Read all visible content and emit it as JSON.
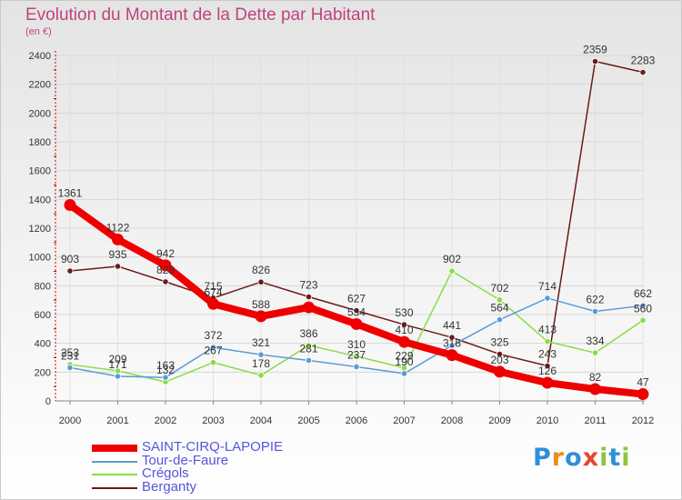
{
  "title": "Evolution du Montant de la Dette par Habitant",
  "subtitle": "(en €)",
  "logo": {
    "text": "Proxiti",
    "colors": [
      "#2f8fd8",
      "#f08a1c",
      "#2f8fd8",
      "#e8452f",
      "#8cc63f",
      "#2f8fd8",
      "#8cc63f"
    ]
  },
  "chart_data": {
    "type": "line",
    "title": "Evolution du Montant de la Dette par Habitant",
    "subtitle": "(en €)",
    "xlabel": "",
    "ylabel": "",
    "ylim": [
      0,
      2400
    ],
    "yticks": [
      0,
      200,
      400,
      600,
      800,
      1000,
      1200,
      1400,
      1600,
      1800,
      2000,
      2200,
      2400
    ],
    "grid": true,
    "legend_position": "bottom-left",
    "categories": [
      "2000",
      "2001",
      "2002",
      "2003",
      "2004",
      "2005",
      "2006",
      "2007",
      "2008",
      "2009",
      "2010",
      "2011",
      "2012"
    ],
    "series": [
      {
        "name": "SAINT-CIRQ-LAPOPIE",
        "color": "#ee0000",
        "values": [
          1361,
          1122,
          942,
          674,
          588,
          650,
          534,
          410,
          318,
          203,
          126,
          82,
          47
        ],
        "labels": [
          "1361",
          "1122",
          "942",
          "674",
          "588",
          "",
          "534",
          "410",
          "318",
          "203",
          "126",
          "82",
          "47"
        ]
      },
      {
        "name": "Tour-de-Faure",
        "color": "#5a9bd4",
        "values": [
          231,
          171,
          163,
          372,
          321,
          281,
          237,
          190,
          385,
          564,
          714,
          622,
          662
        ],
        "labels": [
          "231",
          "171",
          "163",
          "372",
          "321",
          "281",
          "237",
          "190",
          "",
          "564",
          "714",
          "622",
          "662"
        ]
      },
      {
        "name": "Crégols",
        "color": "#88dd44",
        "values": [
          253,
          209,
          132,
          267,
          178,
          386,
          310,
          229,
          902,
          702,
          413,
          334,
          560
        ],
        "labels": [
          "253",
          "209",
          "132",
          "267",
          "178",
          "386",
          "310",
          "229",
          "902",
          "702",
          "413",
          "334",
          "560"
        ]
      },
      {
        "name": "Berganty",
        "color": "#6b1a1a",
        "values": [
          903,
          935,
          828,
          715,
          826,
          723,
          627,
          530,
          441,
          325,
          243,
          2359,
          2283
        ],
        "labels": [
          "903",
          "935",
          "828",
          "715",
          "826",
          "723",
          "627",
          "530",
          "441",
          "325",
          "243",
          "2359",
          "2283"
        ]
      }
    ]
  }
}
